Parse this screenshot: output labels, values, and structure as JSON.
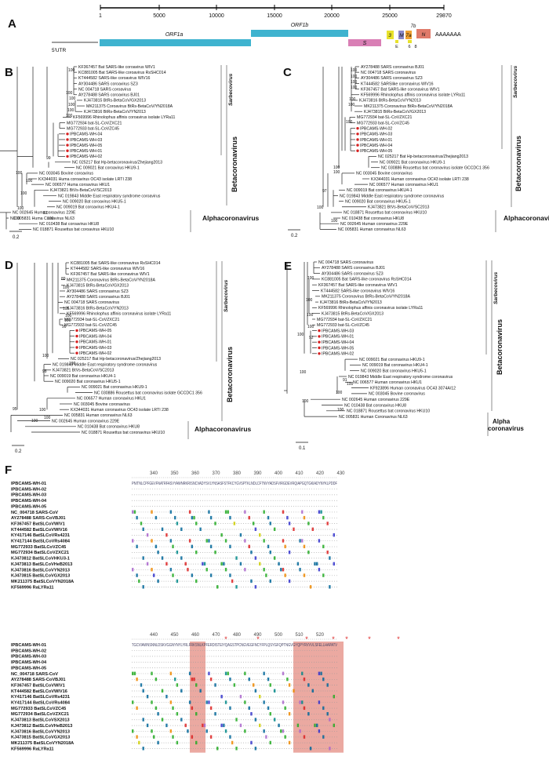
{
  "panels": {
    "A": "A",
    "B": "B",
    "C": "C",
    "D": "D",
    "E": "E",
    "F": "F"
  },
  "genome": {
    "ticks": [
      "1",
      "5000",
      "10000",
      "15000",
      "20000",
      "25000",
      "29870"
    ],
    "utr5": "5'UTR",
    "polyA": "AAAAAAA",
    "genes": {
      "orf1a": "ORF1a",
      "orf1b": "ORF1b",
      "s": "S",
      "g3": "3",
      "e": "E",
      "m": "M",
      "g6": "6",
      "g7a": "7a",
      "g7b": "7b",
      "g8": "8",
      "n": "N"
    },
    "colors": {
      "orf1a": "#3fb3cf",
      "orf1b": "#3fb3cf",
      "s": "#d97fb5",
      "g3": "#e8e22c",
      "e": "#e8e22c",
      "m": "#8a87c9",
      "g6": "#e8e22c",
      "g7a": "#f0a030",
      "n": "#e07a6a"
    }
  },
  "labels": {
    "beta": "Betacoronavirus",
    "alpha": "Alphacoronavirus",
    "alpha_split_1": "Alpha",
    "alpha_split_2": "coronavirus",
    "sarbeco": "Sarbecovirus"
  },
  "trees": {
    "B": {
      "scale": "0.2",
      "taxa": [
        "KF367457 Bat SARS-like coroavirus WIV1",
        "KC881005 Bat SARS-like coroavirus RsSHC014",
        "KT444582 SARS-like coroavirus WIV16",
        "AY304486 SARS coroavirus SZ3",
        "NC 004718 SARS coroavirus",
        "AY278488 SARS coroavirus BJ01",
        "KJ473815 BtRs-BetaCoV/GX2013",
        "MK211375 Coroavirus BtRs-BetaCoV/YN2018A",
        "KJ473816 BtRs-BetaCoV/YN2013",
        "KF569996 Rhinolophus affinis coroavirus isolate LYRa11",
        "MG772934 bat-SL-CoVZXC21",
        "MG772933 bat-SL-CoVZC45",
        "IPBCAMS-WH-04",
        "IPBCAMS-WH-03",
        "IPBCAMS-WH-05",
        "IPBCAMS-WH-01",
        "IPBCAMS-WH-02",
        "NC 025217 Bat Hp-betacoronavirus/Zhejiang2013",
        "NC 009021 Bat coroavirus HKU9-1",
        "NC 003045 Bovine coroavirus",
        "KX344031 Huma coroavirus OC43 isolate LRTI 238",
        "NC 006577 Huma coroavirus HKU1",
        "KJ473821 BtVs-BetaCoV/SC2013",
        "NC 019843 Middle East respiratory syndrome coroavirus",
        "NC 009020 Bat coroavirus HKU5-1",
        "NC 009019 Bat coroavirus HKU4-1",
        "NC 002645 Huma coroavirus 229E",
        "NC 005831 Huma Coroavirus NL63",
        "NC 010438 Bat coroavirus HKU8",
        "NC 018871 Rousettus bat coroavirus HKU10"
      ],
      "boot": [
        "100",
        "100",
        "100",
        "100",
        "100",
        "100",
        "99",
        "100",
        "100",
        "100",
        "100",
        "92",
        "100",
        "100"
      ]
    },
    "C": {
      "scale": "0.2",
      "taxa": [
        "AY278488 SARS coronavirus BJ01",
        "NC 004718 SARS coronavirus",
        "AY304486 SARS coronavirus SZ3",
        "KT444582 SARSlike coronavirus WIV16",
        "KF367457 Bat SARS-like coronavirus WIV1",
        "KF569996 Rhinolophus affinis coronavirus isolate LYRa11",
        "KJ473816 BtRs-BetaCoV/YN2013",
        "MK211375 Coronavirus BtRs-BetaCoV/YN2018A",
        "KJ473815 BtRs-BetaCoV/GX2013",
        "MG772934 bat-SL-CoVZXC21",
        "MG772933 bat-SL-CoVZC45",
        "IPBCAMS-WH-02",
        "IPBCAMS-WH-03",
        "IPBCAMS-WH-01",
        "IPBCAMS-WH-04",
        "IPBCAMS-WH-05",
        "NC 025217 Bat Hp-betacoronavirus/Zhejiang2013",
        "NC 009021 Bat coronavirus HKU9-1",
        "NC 030886 Rousettus bat coronavirus isolate GCCDC1 356",
        "NC 003045 Bovine coronavirus",
        "KX344031 Human coronavirus OC43 isolate LRTI 238",
        "NC 006577 Human coronavirus HKU1",
        "NC 009019 Bat coronavirus HKU4-1",
        "NC 019843 Middle East respiratory syndrome coronavirus",
        "NC 009020 Bat coronavirus HKU5-1",
        "KJ473821 BtVs-BetaCoV/SC2013",
        "NC 018871 Rousettus bat coronavirus HKU10",
        "NC 010438 Bat coronavirus HKU8",
        "NC 002645 Human coronavirus 229E",
        "NC 005831 Human coronavirus NL63"
      ],
      "boot": [
        "100",
        "100",
        "100",
        "100",
        "100",
        "100",
        "100",
        "100",
        "97",
        "100",
        "100",
        "100"
      ]
    },
    "D": {
      "scale": "0.2",
      "taxa": [
        "KC881005 Bat SARS-like coronavirus RsSHC014",
        "KT444582 SARS-like coronavirus WIV16",
        "KF367457 Bat SARS-like coronavirus WIV1",
        "MK211375 Coronavirus BtRs-BetaCoV/YN2018A",
        "KJ473815 BtRs-BetaCoV/GX2013",
        "AY304486 SARS coronavirus SZ3",
        "AY278488 SARS coronavirus BJ01",
        "NC 004718 SARS coronavirus",
        "KJ473816 BtRs-BetaCoV/YN2013",
        "KF569996 Rhinolophus affinis coronavirus isolate LYRa11",
        "MG772934 bat-SL-CoVZXC21",
        "MG772933 bat-SL-CoVZC45",
        "IPBCAMS-WH-05",
        "IPBCAMS-WH-04",
        "IPBCAMS-WH-01",
        "IPBCAMS-WH-03",
        "IPBCAMS-WH-02",
        "NC 025217 Bat Hp-betacoronavirus/Zhejiang2013",
        "NC 019843 Middle East respiratory syndrome coronavirus",
        "KJ473821 BtVs-BetaCoV/SC2013",
        "NC 009019 Bat coronavirus HKU4-1",
        "NC 009020 Bat coronavirus HKU5-1",
        "NC 009021 Bat coronavirus HKU9-1",
        "NC 030886 Rousettus bat coronavirus isolate GCCDC1 356",
        "NC 006577 Human coronavirus HKU1",
        "NC 003045 Bovine coronavirus",
        "KX344031 Human coronavirus OC43 isolate LRTI 238",
        "NC 005831 Human coronavirus NL63",
        "NC 002645 Human coronavirus 229E",
        "NC 010438 Bat coronavirus HKU8",
        "NC 018871 Rousettus bat coronavirus HKU10"
      ],
      "boot": [
        "89",
        "100",
        "100",
        "100",
        "100",
        "99",
        "100",
        "98",
        "95",
        "100",
        "100",
        "100",
        "100"
      ]
    },
    "E": {
      "scale": "0.1",
      "taxa": [
        "NC 004718 SARS coronavirus",
        "AY278488 SARS coronavirus BJ01",
        "AY304486 SARS coronavirus SZ3",
        "KC881005 Bat SARS-like coronavirus RsSHC014",
        "KF367457 Bat SARS-like coronavirus WIV1",
        "KT444582 SARS-like coronavirus WIV16",
        "MK211375 Coronavirus BtRs-BetaCoV/YN2018A",
        "KJ473816 BtRs-BetaCoV/YN2013",
        "KF569996 Rhinolophus affinis coronavirus isolate LYRa11",
        "KJ473815 BtRs-BetaCoV/GX2013",
        "MG772934 bat-SL-CoVZXC21",
        "MG772933 bat-SL-CoVZC45",
        "IPBCAMS-WH-03",
        "IPBCAMS-WH-01",
        "IPBCAMS-WH-04",
        "IPBCAMS-WH-05",
        "IPBCAMS-WH-02",
        "NC 009021 Bat coronavirus HKU9-1",
        "NC 009019 Bat coronavirus HKU4-1",
        "NC 009020 Bat coronavirus HKU5-1",
        "NC 019843 Middle East respiratory syndrome coronavirus",
        "NC 006577 Human coronavirus HKU1",
        "KF923896 Human coronavirus OC43 3074A/12",
        "NC 003045 Bovine coronavirus",
        "NC 002645 Human coronavirus 229E",
        "NC 010438 Bat coronavirus HKU8",
        "NC 018871 Rousettus bat coronavirus HKU10",
        "NC 005831 Human Coronavirus NL63"
      ],
      "boot": [
        "100",
        "100",
        "100",
        "100",
        "92",
        "100",
        "100",
        "91",
        "100",
        "100",
        "100",
        "100"
      ]
    }
  },
  "alignment": {
    "names": [
      "IPBCAMS-WH-01",
      "IPBCAMS-WH-02",
      "IPBCAMS-WH-03",
      "IPBCAMS-WH-04",
      "IPBCAMS-WH-05",
      "NC_004718 SARS-CoV",
      "AY278488 SARS-CoVBJ01",
      "KF367457 BatSLCoVWIV1",
      "KT444582 BatSLCoVWIV16",
      "KY417146 BatSLCoVRs4231",
      "KY417144 BatSLCoVRs4084",
      "MG772933 BatSLCoVZC45",
      "MG772934 BatSLCoVZXC21",
      "KJ473812 BatSLCoVHKU3-1",
      "KJ473813 BatSLCoVHeB2013",
      "KJ473816 BatSLCoVYN2013",
      "KJ473815 BatSLCoVGX2013",
      "MK211375 BatSLCoVYN2018A",
      "KF569996 RaLYRa11"
    ],
    "names2": [
      "IPBCAMS-WH-01",
      "IPBCAMS-WH-02",
      "IPBCAMS-WH-03",
      "IPBCAMS-WH-04",
      "IPBCAMS-WH-05",
      "NC_004718 SARS-CoV",
      "AY278488 SARS-CoVBJ01",
      "KF367457 BatSLCoVWIV1",
      "KT444582 BatSLCoVWIV16",
      "KY417146 BatSLCoVRs4231",
      "KY417144 BatSLCoVRs4084",
      "MG772933 BatSLCoVZC45",
      "MG772934 BatSLCoVZXC21",
      "KJ473813 BatSLCoVSX2013",
      "KJ473812 BatSLCoVHeB2013",
      "KJ473816 BatSLCoVYN2013",
      "KJ473815 BatSLCoVGX2013",
      "MK211375 BatSLCoVYN2018A",
      "KF569996 RaLYRa11"
    ],
    "ruler1": [
      "340",
      "350",
      "360",
      "370",
      "380",
      "390",
      "400",
      "410",
      "420",
      "430"
    ],
    "ruler2": [
      "440",
      "450",
      "460",
      "470",
      "480",
      "490",
      "500",
      "510",
      "520"
    ],
    "ref1": "PNITNLCPFGEVFNATRFASVYAWNRKRISNCVADYSVLYNSASFSTFKCYGVSPTKLNDLCFTNVYADSFVIRGDEVRQIAPGQTGKIADYNYKLPDDF",
    "ref2": "TGCVIAWNSNNLDSKVGGNYNYLYRLFRKSNLKPFERDISTEIYQAGSTPCNGVEGFNCYFPLQSYGFQPTNGVGYQPYRVVVLSFELLHAPATV"
  }
}
